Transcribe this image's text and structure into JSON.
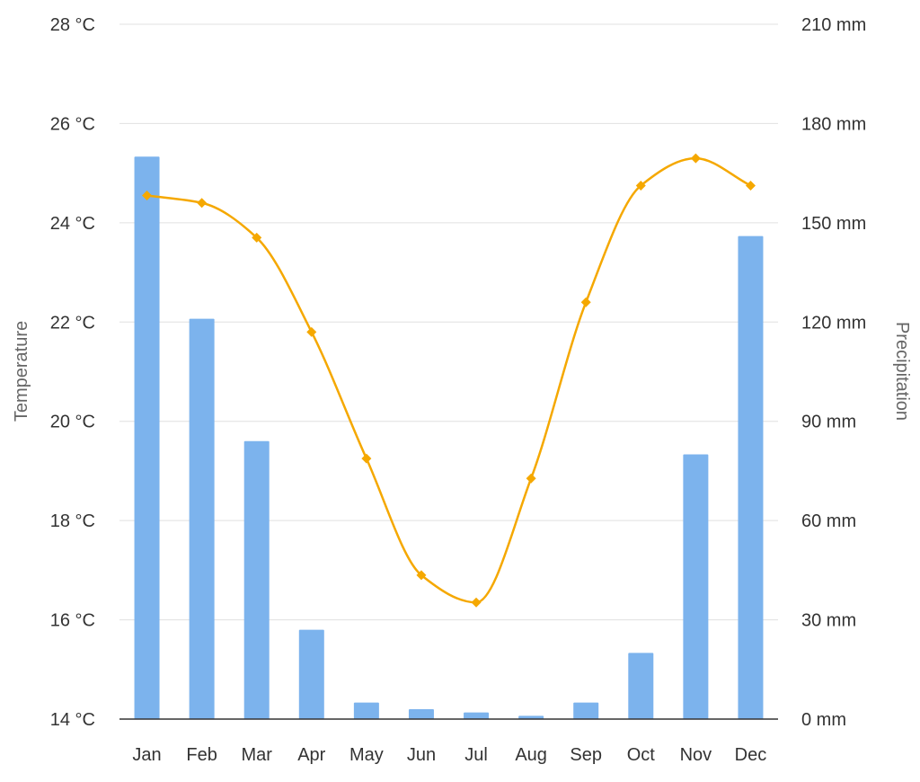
{
  "chart_data": {
    "type": "bar",
    "categories": [
      "Jan",
      "Feb",
      "Mar",
      "Apr",
      "May",
      "Jun",
      "Jul",
      "Aug",
      "Sep",
      "Oct",
      "Nov",
      "Dec"
    ],
    "series": [
      {
        "name": "Precipitation",
        "type": "bar",
        "axis": "right",
        "unit": "mm",
        "color": "#7cb3ed",
        "values": [
          170,
          121,
          84,
          27,
          5,
          3,
          2,
          1,
          5,
          20,
          80,
          146
        ]
      },
      {
        "name": "Temperature",
        "type": "line",
        "axis": "left",
        "unit": "°C",
        "color": "#f5a800",
        "values": [
          24.55,
          24.4,
          23.7,
          21.8,
          19.25,
          16.9,
          16.35,
          18.85,
          22.4,
          24.75,
          25.3,
          24.75
        ]
      }
    ],
    "ylabel": "Temperature",
    "ylabel_right": "Precipitation",
    "ylim": [
      14,
      28
    ],
    "ylim_right": [
      0,
      210
    ],
    "yticks": [
      "14 °C",
      "16 °C",
      "18 °C",
      "20 °C",
      "22 °C",
      "24 °C",
      "26 °C",
      "28 °C"
    ],
    "yticks_right": [
      "0 mm",
      "30 mm",
      "60 mm",
      "90 mm",
      "120 mm",
      "150 mm",
      "180 mm",
      "210 mm"
    ],
    "grid": true,
    "legend": "none"
  }
}
